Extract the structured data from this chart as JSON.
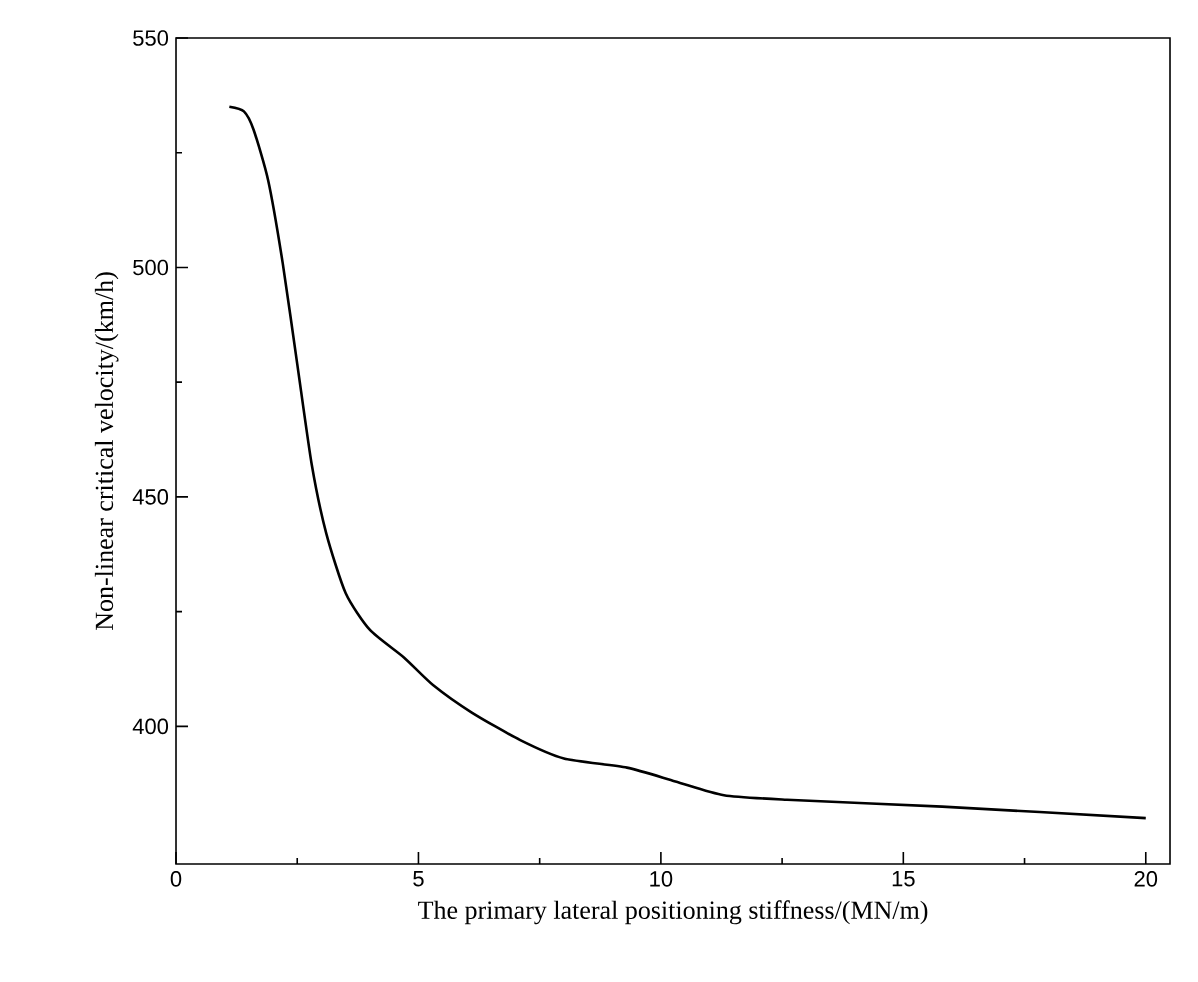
{
  "chart_data": {
    "type": "line",
    "xlabel": "The primary lateral positioning stiffness/(MN/m)",
    "ylabel": "Non-linear critical velocity/(km/h)",
    "x": [
      1.1,
      1.4,
      1.6,
      1.9,
      2.2,
      2.5,
      2.8,
      3.1,
      3.5,
      4.0,
      4.7,
      5.3,
      6.1,
      7.1,
      8.0,
      9.3,
      10.3,
      11.3,
      12.6,
      15.8,
      20.0
    ],
    "series": [
      {
        "color": "#000000",
        "values": [
          535,
          534,
          530,
          519,
          501,
          479,
          457,
          442,
          429,
          421,
          415,
          409,
          403,
          397,
          393,
          391,
          388,
          385,
          384,
          382.5,
          380
        ]
      }
    ],
    "xlim": [
      0,
      20.5
    ],
    "ylim": [
      370,
      550
    ],
    "xticks": [
      0,
      5,
      10,
      15,
      20
    ],
    "yticks": [
      400,
      450,
      500,
      550
    ],
    "grid": false,
    "marker": "none",
    "line_style": "solid"
  }
}
